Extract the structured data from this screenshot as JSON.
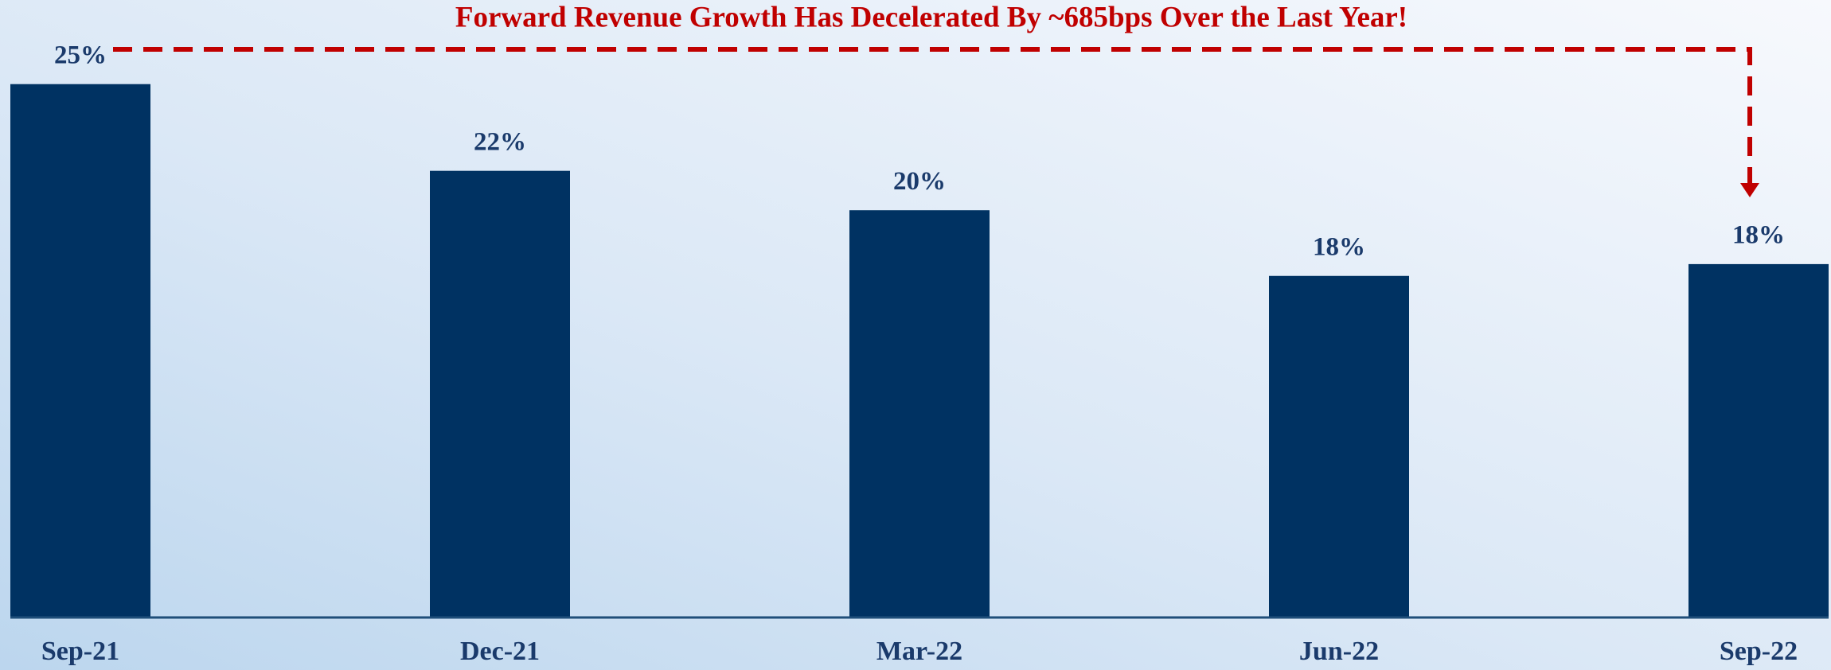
{
  "chart_data": {
    "type": "bar",
    "title": "Forward Revenue Growth Has Decelerated  By ~685bps Over the Last Year!",
    "categories": [
      "Sep-21",
      "Dec-21",
      "Mar-22",
      "Jun-22",
      "Sep-22"
    ],
    "values": [
      24.9,
      21.6,
      20.1,
      17.6,
      18.05
    ],
    "value_labels": [
      "25%",
      "22%",
      "20%",
      "18%",
      "18%"
    ],
    "color": "#003262",
    "ylim": [
      4.6,
      25.8
    ]
  }
}
